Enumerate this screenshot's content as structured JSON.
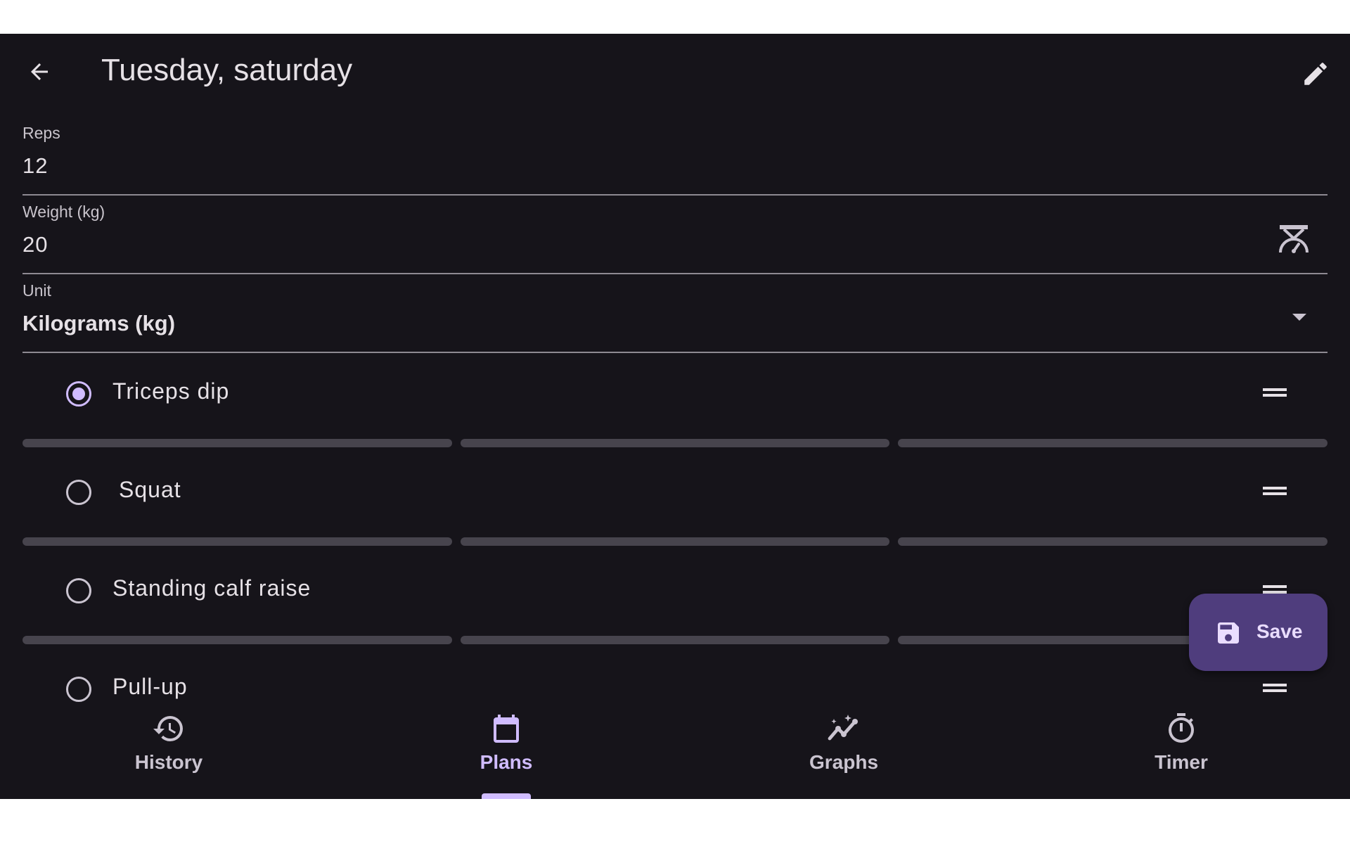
{
  "header": {
    "title": "Tuesday, saturday",
    "back_icon": "arrow-back-icon",
    "edit_icon": "pencil-icon"
  },
  "form": {
    "reps": {
      "label": "Reps",
      "value": "12"
    },
    "weight": {
      "label": "Weight (kg)",
      "value": "20",
      "suffix_icon": "scale-icon"
    },
    "unit": {
      "label": "Unit",
      "value": "Kilograms (kg)"
    }
  },
  "exercises": [
    {
      "label": "Triceps dip",
      "selected": true
    },
    {
      "label": "Squat",
      "selected": false
    },
    {
      "label": "Standing calf raise",
      "selected": false
    },
    {
      "label": "Pull-up",
      "selected": false
    }
  ],
  "fab": {
    "label": "Save",
    "icon": "floppy-disk-icon"
  },
  "nav": {
    "items": [
      {
        "label": "History",
        "icon": "history-icon",
        "active": false
      },
      {
        "label": "Plans",
        "icon": "calendar-icon",
        "active": true
      },
      {
        "label": "Graphs",
        "icon": "graph-icon",
        "active": false
      },
      {
        "label": "Timer",
        "icon": "stopwatch-icon",
        "active": false
      }
    ]
  },
  "colors": {
    "background": "#16141a",
    "accent": "#d0bcff",
    "fab": "#4f3d7d",
    "divider": "#47444d"
  }
}
